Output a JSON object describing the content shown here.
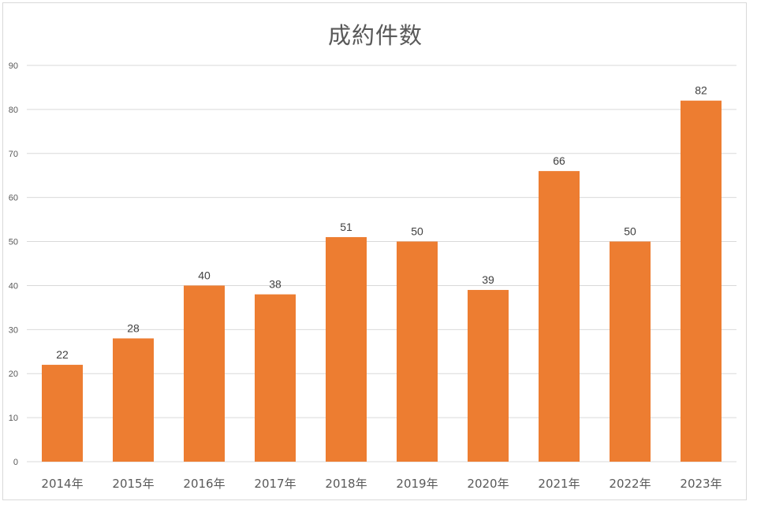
{
  "chart_data": {
    "type": "bar",
    "title": "成約件数",
    "categories": [
      "2014年",
      "2015年",
      "2016年",
      "2017年",
      "2018年",
      "2019年",
      "2020年",
      "2021年",
      "2022年",
      "2023年"
    ],
    "values": [
      22,
      28,
      40,
      38,
      51,
      50,
      39,
      66,
      50,
      82
    ],
    "xlabel": "",
    "ylabel": "",
    "ylim": [
      0,
      90
    ],
    "yticks": [
      0,
      10,
      20,
      30,
      40,
      50,
      60,
      70,
      80,
      90
    ],
    "grid": true,
    "legend": "none",
    "data_labels": true,
    "bar_color": "#ED7D31",
    "grid_color": "#D9D9D9",
    "text_color": "#595959"
  }
}
